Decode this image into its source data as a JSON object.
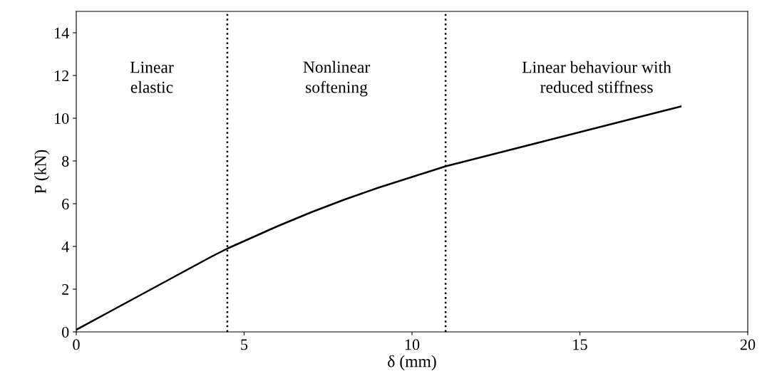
{
  "chart_data": {
    "type": "line",
    "xlabel": "δ (mm)",
    "ylabel": "P (kN)",
    "x": [
      0,
      1,
      2,
      3,
      4,
      4.5,
      5,
      6,
      7,
      8,
      9,
      10,
      11,
      12,
      13,
      14,
      15,
      16,
      17,
      18
    ],
    "series": [
      {
        "color": "#000000",
        "values": [
          0.1,
          0.95,
          1.8,
          2.65,
          3.5,
          3.9,
          4.25,
          4.95,
          5.6,
          6.2,
          6.75,
          7.25,
          7.75,
          8.15,
          8.55,
          8.95,
          9.35,
          9.75,
          10.15,
          10.55
        ]
      }
    ],
    "xlim": [
      0,
      20
    ],
    "xticks": [
      0,
      5,
      10,
      15,
      20
    ],
    "ylim": [
      0,
      15
    ],
    "yticks": [
      0,
      2,
      4,
      6,
      8,
      10,
      12,
      14
    ],
    "ref_lines": [
      {
        "axis": "x",
        "value": 4.5,
        "color": "#000000",
        "line_style": "dotted"
      },
      {
        "axis": "x",
        "value": 11,
        "color": "#000000",
        "line_style": "dotted"
      }
    ],
    "annotations": [
      "Linear\nelastic",
      "Nonlinear\nsoftening",
      "Linear behaviour with\nreduced stiffness"
    ],
    "grid": false,
    "legend": false,
    "marker": "none",
    "line_style": "solid"
  }
}
